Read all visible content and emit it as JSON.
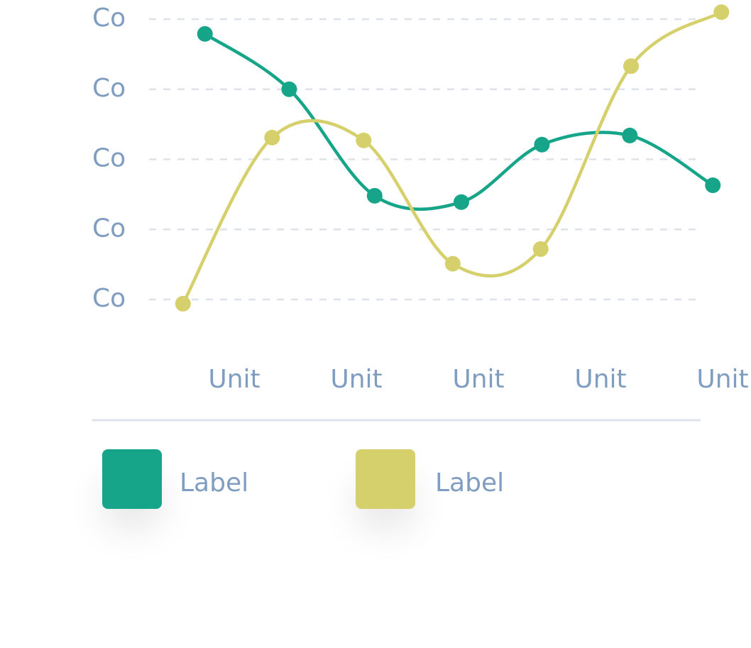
{
  "chart_data": {
    "type": "line",
    "xlim": [
      0,
      5
    ],
    "xticks": [
      {
        "value": 1,
        "label": "Unit"
      },
      {
        "value": 2,
        "label": "Unit"
      },
      {
        "value": 3,
        "label": "Unit"
      },
      {
        "value": 4,
        "label": "Unit"
      },
      {
        "value": 5,
        "label": "Unit"
      }
    ],
    "ylim": [
      -0.4,
      4.2
    ],
    "yticks": [
      {
        "value": 0,
        "label": "Co"
      },
      {
        "value": 1,
        "label": "Co"
      },
      {
        "value": 2,
        "label": "Co"
      },
      {
        "value": 3,
        "label": "Co"
      },
      {
        "value": 4,
        "label": "Co"
      }
    ],
    "grid": true,
    "legend": "bottom",
    "series": [
      {
        "name": "Label",
        "color": "#17a589",
        "x": [
          0.76,
          1.45,
          2.15,
          2.86,
          3.52,
          4.24,
          4.92
        ],
        "values": [
          3.79,
          3.0,
          1.48,
          1.39,
          2.21,
          2.34,
          1.63
        ]
      },
      {
        "name": "Label",
        "color": "#d6d06c",
        "x": [
          0.58,
          1.31,
          2.06,
          2.79,
          3.51,
          4.25,
          4.99
        ],
        "values": [
          -0.06,
          2.31,
          2.27,
          0.51,
          0.72,
          3.33,
          4.1
        ]
      }
    ]
  }
}
